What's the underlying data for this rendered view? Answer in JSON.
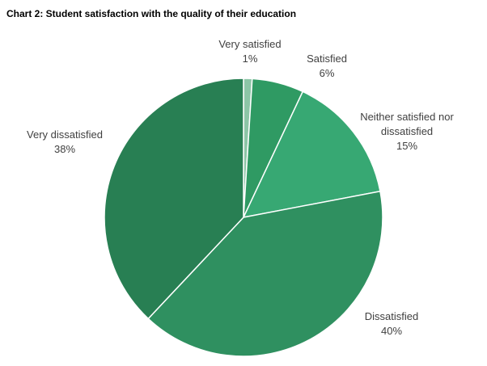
{
  "chart_data": {
    "type": "pie",
    "title": "Chart 2: Student satisfaction with the quality of their education",
    "categories": [
      "Very satisfied",
      "Satisfied",
      "Neither satisfied nor dissatisfied",
      "Dissatisfied",
      "Very dissatisfied"
    ],
    "values": [
      1,
      6,
      15,
      40,
      38
    ],
    "value_labels": [
      "1%",
      "6%",
      "15%",
      "40%",
      "38%"
    ],
    "colors": [
      "#8cc5a6",
      "#2f9a63",
      "#37a873",
      "#2f9060",
      "#287f53"
    ]
  }
}
